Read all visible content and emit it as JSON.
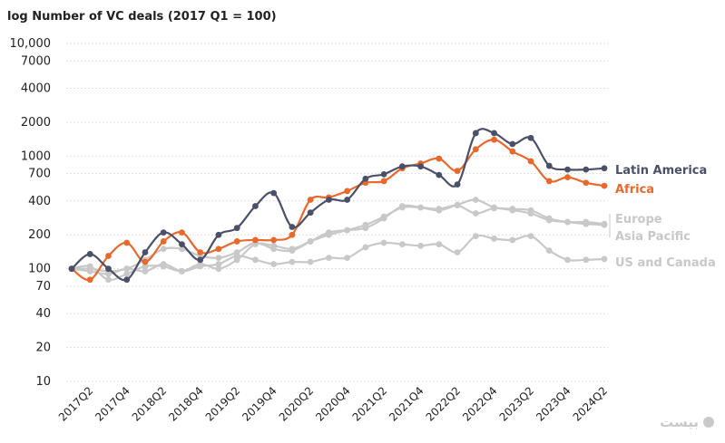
{
  "chart_data": {
    "type": "line",
    "title": "log Number of VC deals (2017 Q1 = 100)",
    "yscale": "log",
    "ylim": [
      10,
      10000
    ],
    "yticks": [
      10,
      20,
      40,
      70,
      100,
      200,
      400,
      700,
      1000,
      2000,
      4000,
      7000,
      10000
    ],
    "yticklabels": [
      "10",
      "20",
      "40",
      "70",
      "100",
      "200",
      "400",
      "700",
      "1000",
      "2000",
      "4000",
      "7000",
      "10,000"
    ],
    "x": [
      "2017Q1",
      "2017Q2",
      "2017Q3",
      "2017Q4",
      "2018Q1",
      "2018Q2",
      "2018Q3",
      "2018Q4",
      "2019Q1",
      "2019Q2",
      "2019Q3",
      "2019Q4",
      "2020Q1",
      "2020Q2",
      "2020Q3",
      "2020Q4",
      "2021Q1",
      "2021Q2",
      "2021Q3",
      "2021Q4",
      "2022Q1",
      "2022Q2",
      "2022Q3",
      "2022Q4",
      "2023Q1",
      "2023Q2",
      "2023Q3",
      "2023Q4",
      "2024Q1",
      "2024Q2"
    ],
    "xticklabels": [
      "2017Q2",
      "2017Q4",
      "2018Q2",
      "2018Q4",
      "2019Q2",
      "2019Q4",
      "2020Q2",
      "2020Q4",
      "2021Q2",
      "2021Q4",
      "2022Q2",
      "2022Q4",
      "2023Q2",
      "2023Q4",
      "2024Q2"
    ],
    "grid": true,
    "series": [
      {
        "name": "Latin America",
        "color": "#4a5068",
        "label_color": "#4a5068",
        "values": [
          100,
          135,
          100,
          80,
          140,
          210,
          165,
          120,
          200,
          230,
          360,
          470,
          235,
          315,
          410,
          410,
          630,
          690,
          810,
          810,
          680,
          560,
          1600,
          1600,
          1280,
          1450,
          820,
          760,
          760,
          780
        ]
      },
      {
        "name": "Africa",
        "color": "#e8692b",
        "label_color": "#e8692b",
        "values": [
          100,
          80,
          130,
          170,
          115,
          175,
          210,
          140,
          150,
          175,
          180,
          180,
          200,
          410,
          430,
          490,
          580,
          600,
          780,
          860,
          950,
          740,
          1150,
          1400,
          1100,
          900,
          600,
          650,
          580,
          545
        ]
      },
      {
        "name": "Europe",
        "color": "#c8c8c8",
        "label_color": "#c8c8c8",
        "values": [
          100,
          100,
          95,
          100,
          120,
          150,
          150,
          130,
          125,
          140,
          170,
          150,
          145,
          175,
          210,
          220,
          230,
          280,
          360,
          350,
          330,
          370,
          410,
          350,
          340,
          330,
          280,
          260,
          260,
          250
        ]
      },
      {
        "name": "Asia Pacific",
        "color": "#c8c8c8",
        "label_color": "#c8c8c8",
        "values": [
          100,
          105,
          80,
          90,
          105,
          105,
          95,
          110,
          100,
          120,
          165,
          160,
          150,
          175,
          200,
          220,
          245,
          290,
          350,
          350,
          340,
          365,
          310,
          345,
          330,
          310,
          270,
          260,
          250,
          245
        ]
      },
      {
        "name": "US and Canada",
        "color": "#c8c8c8",
        "label_color": "#c8c8c8",
        "values": [
          100,
          95,
          90,
          100,
          95,
          110,
          95,
          105,
          110,
          130,
          120,
          110,
          115,
          115,
          125,
          125,
          155,
          170,
          165,
          160,
          165,
          140,
          195,
          185,
          180,
          195,
          145,
          120,
          120,
          122
        ]
      }
    ]
  },
  "watermark": {
    "text": "بیست"
  }
}
